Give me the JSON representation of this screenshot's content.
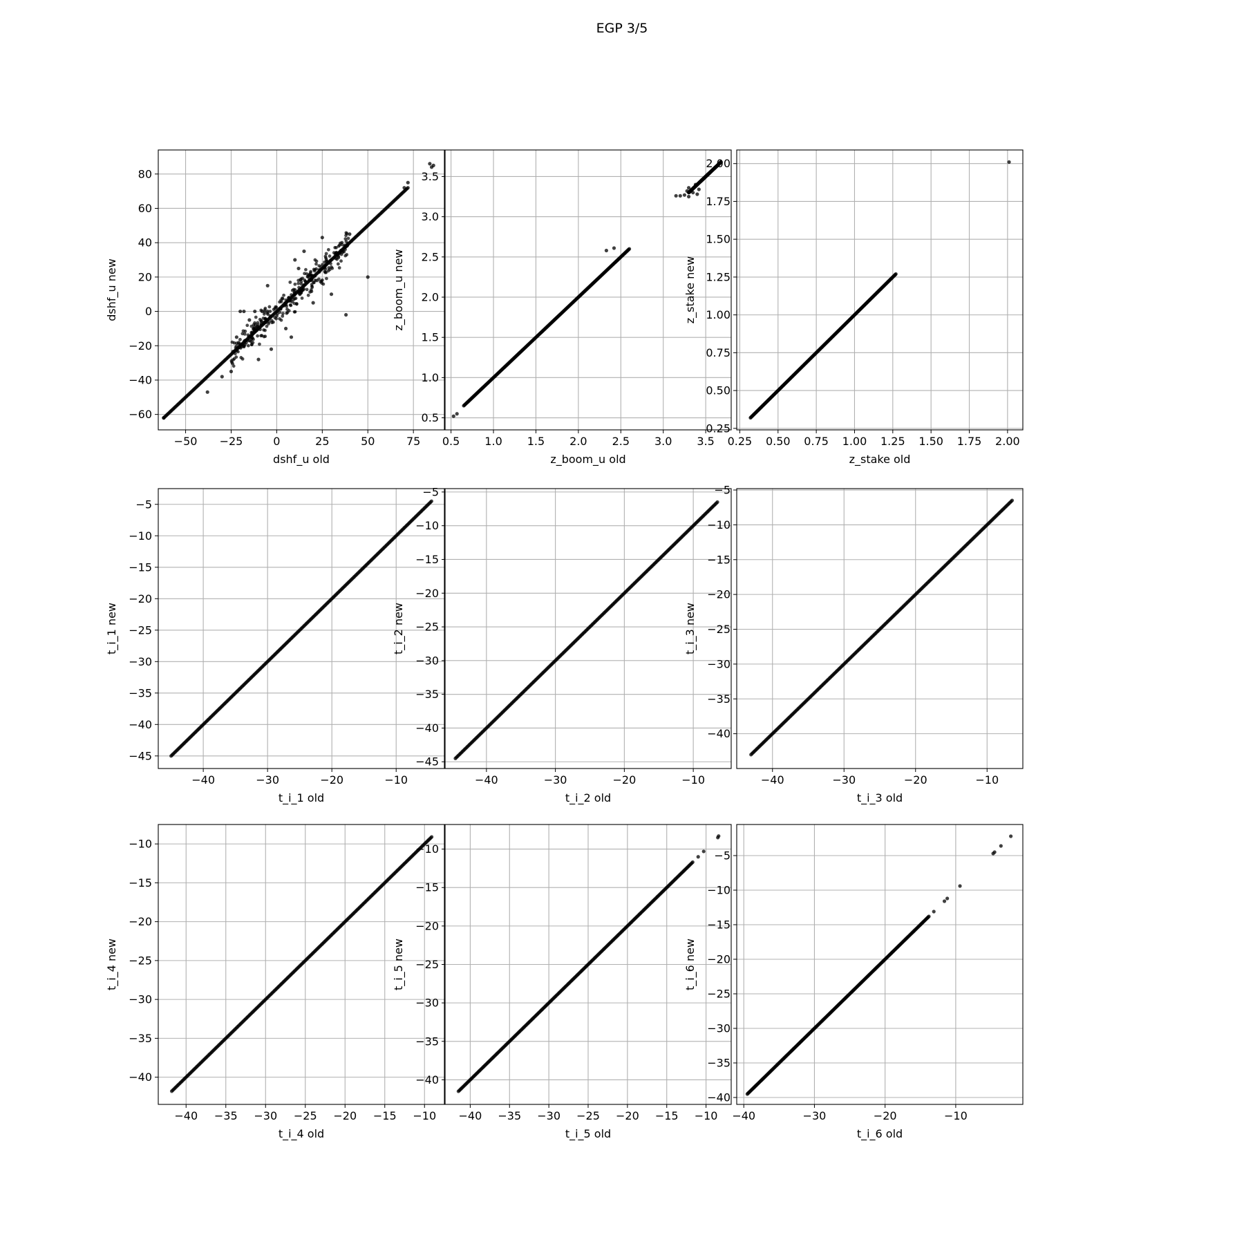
{
  "figure": {
    "title": "EGP 3/5"
  },
  "chart_data": [
    {
      "type": "scatter",
      "xlabel": "dshf_u old",
      "ylabel": "dshf_u new",
      "xlim": [
        -65,
        92
      ],
      "ylim": [
        -69,
        94
      ],
      "xticks": [
        -50,
        -25,
        0,
        25,
        50,
        75
      ],
      "yticks": [
        -60,
        -40,
        -20,
        0,
        20,
        40,
        60,
        80
      ],
      "xtick_labels": [
        "−50",
        "−25",
        "0",
        "25",
        "50",
        "75"
      ],
      "ytick_labels": [
        "−60",
        "−40",
        "−20",
        "0",
        20,
        40,
        60,
        80
      ],
      "grid": true,
      "diagonal": [
        -62,
        72
      ],
      "points": [
        [
          84,
          86
        ],
        [
          86,
          85
        ],
        [
          85,
          84
        ],
        [
          72,
          75
        ],
        [
          70,
          72
        ],
        [
          -62,
          -62
        ],
        [
          -38,
          -47
        ],
        [
          50,
          20
        ],
        [
          38,
          -2
        ],
        [
          25,
          43
        ],
        [
          -20,
          0
        ],
        [
          -15,
          -5
        ],
        [
          10,
          30
        ],
        [
          5,
          -10
        ],
        [
          -10,
          -28
        ],
        [
          20,
          5
        ],
        [
          15,
          35
        ],
        [
          -5,
          15
        ],
        [
          -25,
          -35
        ],
        [
          30,
          10
        ],
        [
          -12,
          0
        ],
        [
          -8,
          0
        ],
        [
          -18,
          0
        ],
        [
          40,
          45
        ],
        [
          -3,
          -22
        ],
        [
          8,
          -15
        ],
        [
          12,
          25
        ],
        [
          -30,
          -38
        ],
        [
          22,
          18
        ],
        [
          -22,
          -15
        ]
      ],
      "cloud": {
        "x_range": [
          -25,
          40
        ],
        "spread": 8
      }
    },
    {
      "type": "scatter",
      "xlabel": "z_boom_u old",
      "ylabel": "z_boom_u new",
      "xlim": [
        0.43,
        3.8
      ],
      "ylim": [
        0.35,
        3.83
      ],
      "xticks": [
        0.5,
        1.0,
        1.5,
        2.0,
        2.5,
        3.0,
        3.5
      ],
      "yticks": [
        0.5,
        1.0,
        1.5,
        2.0,
        2.5,
        3.0,
        3.5
      ],
      "xtick_labels": [
        "0.5",
        "1.0",
        "1.5",
        "2.0",
        "2.5",
        "3.0",
        "3.5"
      ],
      "ytick_labels": [
        "0.5",
        "1.0",
        "1.5",
        "2.0",
        "2.5",
        "3.0",
        "3.5"
      ],
      "grid": true,
      "diagonal": [
        0.65,
        2.6
      ],
      "diagonal2": [
        3.3,
        3.68
      ],
      "points": [
        [
          0.53,
          0.52
        ],
        [
          0.57,
          0.55
        ],
        [
          2.33,
          2.58
        ],
        [
          2.42,
          2.61
        ],
        [
          3.15,
          3.26
        ],
        [
          3.2,
          3.26
        ],
        [
          3.25,
          3.27
        ],
        [
          3.28,
          3.32
        ],
        [
          3.3,
          3.36
        ],
        [
          3.35,
          3.3
        ],
        [
          3.38,
          3.4
        ],
        [
          3.4,
          3.28
        ],
        [
          3.3,
          3.25
        ],
        [
          3.42,
          3.34
        ]
      ]
    },
    {
      "type": "scatter",
      "xlabel": "z_stake old",
      "ylabel": "z_stake new",
      "xlim": [
        0.23,
        2.1
      ],
      "ylim": [
        0.24,
        2.09
      ],
      "xticks": [
        0.25,
        0.5,
        0.75,
        1.0,
        1.25,
        1.5,
        1.75,
        2.0
      ],
      "yticks": [
        0.25,
        0.5,
        0.75,
        1.0,
        1.25,
        1.5,
        1.75,
        2.0
      ],
      "xtick_labels": [
        "0.25",
        "0.50",
        "0.75",
        "1.00",
        "1.25",
        "1.50",
        "1.75",
        "2.00"
      ],
      "ytick_labels": [
        "0.25",
        "0.50",
        "0.75",
        "1.00",
        "1.25",
        "1.50",
        "1.75",
        "2.00"
      ],
      "grid": true,
      "diagonal": [
        0.32,
        1.27
      ],
      "points": [
        [
          2.01,
          2.01
        ]
      ]
    },
    {
      "type": "scatter",
      "xlabel": "t_i_1 old",
      "ylabel": "t_i_1 new",
      "xlim": [
        -47,
        -2.5
      ],
      "ylim": [
        -47,
        -2.5
      ],
      "xticks": [
        -40,
        -30,
        -20,
        -10
      ],
      "yticks": [
        -45,
        -40,
        -35,
        -30,
        -25,
        -20,
        -15,
        -10,
        -5
      ],
      "xtick_labels": [
        "−40",
        "−30",
        "−20",
        "−10"
      ],
      "ytick_labels": [
        "−45",
        "−40",
        "−35",
        "−30",
        "−25",
        "−20",
        "−15",
        "−10",
        "−5"
      ],
      "grid": true,
      "diagonal": [
        -45,
        -4.5
      ],
      "points": []
    },
    {
      "type": "scatter",
      "xlabel": "t_i_2 old",
      "ylabel": "t_i_2 new",
      "xlim": [
        -46,
        -4.5
      ],
      "ylim": [
        -46,
        -4.5
      ],
      "xticks": [
        -40,
        -30,
        -20,
        -10
      ],
      "yticks": [
        -45,
        -40,
        -35,
        -30,
        -25,
        -20,
        -15,
        -10,
        -5
      ],
      "xtick_labels": [
        "−40",
        "−30",
        "−20",
        "−10"
      ],
      "ytick_labels": [
        "−45",
        "−40",
        "−35",
        "−30",
        "−25",
        "−20",
        "−15",
        "−10",
        "−5"
      ],
      "grid": true,
      "diagonal": [
        -44.5,
        -6.5
      ],
      "points": []
    },
    {
      "type": "scatter",
      "xlabel": "t_i_3 old",
      "ylabel": "t_i_3 new",
      "xlim": [
        -45,
        -5
      ],
      "ylim": [
        -45,
        -4.8
      ],
      "xticks": [
        -40,
        -30,
        -20,
        -10
      ],
      "yticks": [
        -40,
        -35,
        -30,
        -25,
        -20,
        -15,
        -10,
        -5
      ],
      "xtick_labels": [
        "−40",
        "−30",
        "−20",
        "−10"
      ],
      "ytick_labels": [
        "−40",
        "−35",
        "−30",
        "−25",
        "−20",
        "−15",
        "−10",
        "−5"
      ],
      "grid": true,
      "diagonal": [
        -43,
        -6.5
      ],
      "points": []
    },
    {
      "type": "scatter",
      "xlabel": "t_i_4 old",
      "ylabel": "t_i_4 new",
      "xlim": [
        -43.5,
        -7.5
      ],
      "ylim": [
        -43.5,
        -7.5
      ],
      "xticks": [
        -40,
        -35,
        -30,
        -25,
        -20,
        -15,
        -10
      ],
      "yticks": [
        -40,
        -35,
        -30,
        -25,
        -20,
        -15,
        -10
      ],
      "xtick_labels": [
        "−40",
        "−35",
        "−30",
        "−25",
        "−20",
        "−15",
        "−10"
      ],
      "ytick_labels": [
        "−40",
        "−35",
        "−30",
        "−25",
        "−20",
        "−15",
        "−10"
      ],
      "grid": true,
      "diagonal": [
        -41.8,
        -9.1
      ],
      "points": []
    },
    {
      "type": "scatter",
      "xlabel": "t_i_5 old",
      "ylabel": "t_i_5 new",
      "xlim": [
        -43.2,
        -6.8
      ],
      "ylim": [
        -43.2,
        -6.8
      ],
      "xticks": [
        -40,
        -35,
        -30,
        -25,
        -20,
        -15,
        -10
      ],
      "yticks": [
        -40,
        -35,
        -30,
        -25,
        -20,
        -15,
        -10
      ],
      "xtick_labels": [
        "−40",
        "−35",
        "−30",
        "−25",
        "−20",
        "−15",
        "−10"
      ],
      "ytick_labels": [
        "−40",
        "−35",
        "−30",
        "−25",
        "−20",
        "−15",
        "−10"
      ],
      "grid": true,
      "diagonal": [
        -41.5,
        -11.7
      ],
      "points": [
        [
          -10.3,
          -10.3
        ],
        [
          -11,
          -11
        ],
        [
          -8.5,
          -8.5
        ],
        [
          -8.4,
          -8.3
        ]
      ]
    },
    {
      "type": "scatter",
      "xlabel": "t_i_6 old",
      "ylabel": "t_i_6 new",
      "xlim": [
        -41,
        -0.5
      ],
      "ylim": [
        -41,
        -0.5
      ],
      "xticks": [
        -40,
        -30,
        -20,
        -10
      ],
      "yticks": [
        -40,
        -35,
        -30,
        -25,
        -20,
        -15,
        -10,
        -5
      ],
      "xtick_labels": [
        "−40",
        "−30",
        "−20",
        "−10"
      ],
      "ytick_labels": [
        "−40",
        "−35",
        "−30",
        "−25",
        "−20",
        "−15",
        "−10",
        "−5"
      ],
      "grid": true,
      "diagonal": [
        -39.5,
        -13.8
      ],
      "points": [
        [
          -13.1,
          -13.1
        ],
        [
          -11.6,
          -11.6
        ],
        [
          -11.2,
          -11.2
        ],
        [
          -9.4,
          -9.4
        ],
        [
          -4.5,
          -4.5
        ],
        [
          -4.7,
          -4.7
        ],
        [
          -3.6,
          -3.6
        ],
        [
          -2.2,
          -2.2
        ]
      ]
    }
  ]
}
